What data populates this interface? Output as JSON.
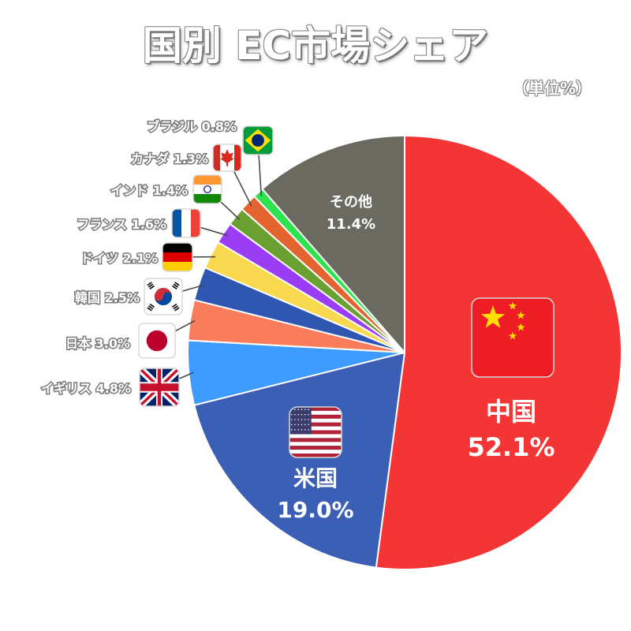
{
  "title": "国別 EC市場シェア",
  "unit": "（単位%）",
  "chart_data": {
    "type": "pie",
    "title": "国別 EC市場シェア",
    "unit": "（単位%）",
    "start": "12 o'clock, clockwise",
    "slices": [
      {
        "name": "中国",
        "value": 52.1,
        "label": "52.1%",
        "color": "#f43535",
        "flag": "china-flag-icon"
      },
      {
        "name": "米国",
        "value": 19.0,
        "label": "19.0%",
        "color": "#3a5fb5",
        "flag": "usa-flag-icon"
      },
      {
        "name": "イギリス",
        "value": 4.8,
        "label": "4.8%",
        "color": "#3e9bff",
        "flag": "uk-flag-icon"
      },
      {
        "name": "日本",
        "value": 3.0,
        "label": "3.0%",
        "color": "#f97d5c",
        "flag": "japan-flag-icon"
      },
      {
        "name": "韓国",
        "value": 2.5,
        "label": "2.5%",
        "color": "#2f56b0",
        "flag": "korea-flag-icon"
      },
      {
        "name": "ドイツ",
        "value": 2.1,
        "label": "2.1%",
        "color": "#f8d84e",
        "flag": "germany-flag-icon"
      },
      {
        "name": "フランス",
        "value": 1.6,
        "label": "1.6%",
        "color": "#9a3df5",
        "flag": "france-flag-icon"
      },
      {
        "name": "インド",
        "value": 1.4,
        "label": "1.4%",
        "color": "#6aa032",
        "flag": "india-flag-icon"
      },
      {
        "name": "カナダ",
        "value": 1.3,
        "label": "1.3%",
        "color": "#e3642e",
        "flag": "canada-flag-icon"
      },
      {
        "name": "ブラジル",
        "value": 0.8,
        "label": "0.8%",
        "color": "#2fe34e",
        "flag": "brazil-flag-icon"
      },
      {
        "name": "その他",
        "value": 11.4,
        "label": "11.4%",
        "color": "#6b6a60",
        "flag": ""
      }
    ]
  }
}
